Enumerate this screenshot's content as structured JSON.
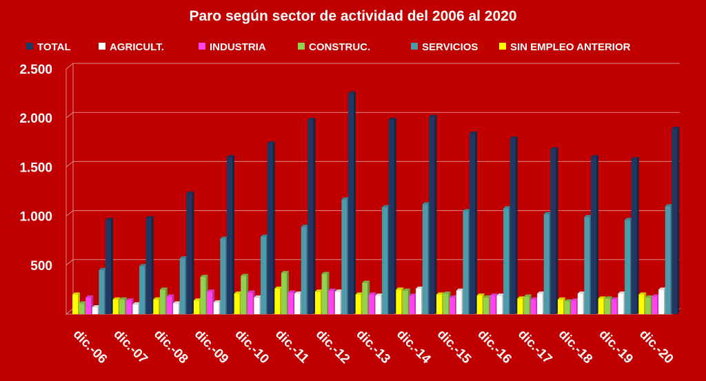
{
  "chart_data": {
    "type": "bar",
    "title": "Paro según sector de actividad del 2006 al 2020",
    "categories": [
      "dic.-06",
      "dic.-07",
      "dic.-08",
      "dic.-09",
      "dic.-10",
      "dic.-11",
      "dic.-12",
      "dic.-13",
      "dic.-14",
      "dic.-15",
      "dic.-16",
      "dic.-17",
      "dic.-18",
      "dic.-19",
      "dic.-20"
    ],
    "ylim": [
      0,
      2500
    ],
    "yticks": [
      "500",
      "1.000",
      "1.500",
      "2.000",
      "2.500"
    ],
    "ytick_values": [
      500,
      1000,
      1500,
      2000,
      2500
    ],
    "grid": true,
    "legend_position": "top",
    "bar_order": [
      "SIN EMPLEO ANTERIOR",
      "CONSTRUC.",
      "INDUSTRIA",
      "AGRICULT.",
      "SERVICIOS",
      "TOTAL"
    ],
    "series": [
      {
        "name": "TOTAL",
        "color": "#1f3864",
        "values": [
          960,
          980,
          1230,
          1600,
          1740,
          1980,
          2250,
          1980,
          2010,
          1840,
          1790,
          1680,
          1600,
          1580,
          1890
        ]
      },
      {
        "name": "AGRICULT.",
        "color": "#ffffff",
        "values": [
          70,
          100,
          110,
          120,
          170,
          210,
          230,
          190,
          260,
          240,
          190,
          210,
          210,
          210,
          250
        ]
      },
      {
        "name": "INDUSTRIA",
        "color": "#ff44ee",
        "values": [
          170,
          140,
          180,
          230,
          220,
          220,
          240,
          200,
          190,
          170,
          190,
          150,
          140,
          150,
          180
        ]
      },
      {
        "name": "CONSTRUC.",
        "color": "#92d050",
        "values": [
          110,
          150,
          250,
          380,
          390,
          420,
          410,
          320,
          240,
          210,
          170,
          180,
          130,
          160,
          170
        ]
      },
      {
        "name": "SERVICIOS",
        "color": "#4b9baa",
        "values": [
          450,
          490,
          570,
          770,
          790,
          890,
          1170,
          1090,
          1120,
          1050,
          1080,
          1020,
          990,
          960,
          1100
        ]
      },
      {
        "name": "SIN EMPLEO ANTERIOR",
        "color": "#ffff00",
        "values": [
          200,
          150,
          150,
          140,
          210,
          260,
          230,
          200,
          250,
          200,
          190,
          160,
          150,
          160,
          200
        ]
      }
    ]
  }
}
